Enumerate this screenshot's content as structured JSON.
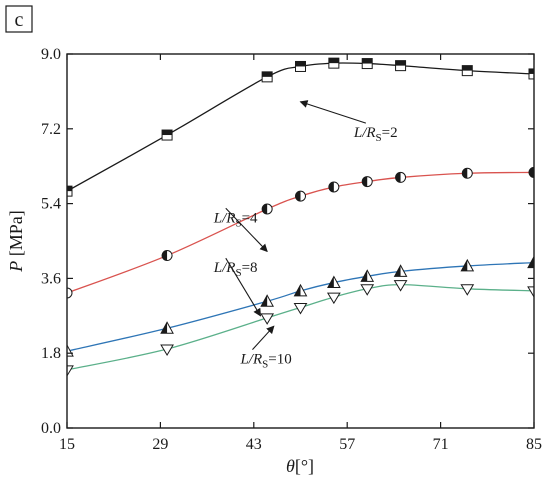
{
  "panel_label": "c",
  "chart_data": {
    "type": "line",
    "xlabel": "θ [°]",
    "ylabel": "P [MPa]",
    "xlim": [
      15,
      85
    ],
    "ylim": [
      0,
      9
    ],
    "xticks": [
      15,
      29,
      43,
      57,
      71,
      85
    ],
    "yticks": [
      0.0,
      1.8,
      3.6,
      5.4,
      7.2,
      9.0
    ],
    "x_tick_labels": [
      "15",
      "29",
      "43",
      "57",
      "71",
      "85"
    ],
    "y_tick_labels": [
      "0.0",
      "1.8",
      "3.6",
      "5.4",
      "7.2",
      "9.0"
    ],
    "grid": false,
    "series": [
      {
        "label_prefix": "L/R",
        "label_sub": "S",
        "label_suffix": "=2",
        "color": "#1a1a1a",
        "marker": "square-half",
        "x": [
          15,
          30,
          45,
          50,
          55,
          60,
          65,
          75,
          85
        ],
        "y": [
          5.7,
          7.05,
          8.45,
          8.7,
          8.78,
          8.77,
          8.72,
          8.6,
          8.52
        ]
      },
      {
        "label_prefix": "L/R",
        "label_sub": "S",
        "label_suffix": "=4",
        "color": "#d9534f",
        "marker": "circle-half",
        "x": [
          15,
          30,
          45,
          50,
          55,
          60,
          65,
          75,
          85
        ],
        "y": [
          3.25,
          4.15,
          5.27,
          5.58,
          5.8,
          5.93,
          6.03,
          6.13,
          6.15
        ]
      },
      {
        "label_prefix": "L/R",
        "label_sub": "S",
        "label_suffix": "=8",
        "color": "#2e75b6",
        "marker": "triangle-half",
        "x": [
          15,
          30,
          45,
          50,
          55,
          60,
          65,
          75,
          85
        ],
        "y": [
          1.85,
          2.4,
          3.05,
          3.3,
          3.5,
          3.65,
          3.77,
          3.9,
          3.98
        ]
      },
      {
        "label_prefix": "L/R",
        "label_sub": "S",
        "label_suffix": "=10",
        "color": "#5bb08a",
        "marker": "triangle-down-open",
        "x": [
          15,
          30,
          45,
          50,
          55,
          60,
          65,
          75,
          85
        ],
        "y": [
          1.4,
          1.9,
          2.65,
          2.9,
          3.15,
          3.35,
          3.45,
          3.35,
          3.3
        ]
      }
    ],
    "annotations": [
      {
        "series": 0,
        "text_at": [
          58,
          7.0
        ],
        "arrow_to": [
          50,
          7.85
        ]
      },
      {
        "series": 1,
        "text_at": [
          37,
          4.95
        ],
        "arrow_to": [
          45,
          4.25
        ]
      },
      {
        "series": 2,
        "text_at": [
          37,
          3.75
        ],
        "arrow_to": [
          44,
          2.7
        ]
      },
      {
        "series": 3,
        "text_at": [
          41,
          1.55
        ],
        "arrow_to": [
          46,
          2.45
        ]
      }
    ]
  }
}
